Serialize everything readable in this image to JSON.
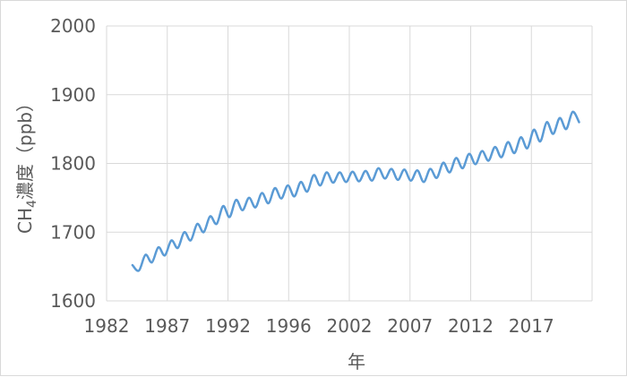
{
  "chart_data": {
    "type": "line",
    "title": "",
    "xlabel": "年",
    "ylabel": {
      "prefix": "CH",
      "subscript": "4",
      "suffix": "濃度（ppb）"
    },
    "xlim": [
      1982,
      2019.5
    ],
    "ylim": [
      1600,
      2000
    ],
    "x_ticks": [
      "1982",
      "1987",
      "1992",
      "1996",
      "2002",
      "2007",
      "2012",
      "2017"
    ],
    "y_ticks": [
      "1600",
      "1700",
      "1800",
      "1900",
      "2000"
    ],
    "grid": true,
    "legend": "none",
    "colors": {
      "line": "#5b9bd5",
      "grid": "#d9d9d9",
      "text": "#595959"
    },
    "series": [
      {
        "x": [
          1984.0,
          1984.5,
          1985.0,
          1985.5,
          1986.0,
          1986.5,
          1987.0,
          1987.5,
          1988.0,
          1988.5,
          1989.0,
          1989.5,
          1990.0,
          1990.5,
          1991.0,
          1991.5,
          1992.0,
          1992.5,
          1993.0,
          1993.5,
          1994.0,
          1994.5,
          1995.0,
          1995.5,
          1996.0,
          1996.5,
          1997.0,
          1997.5,
          1998.0,
          1998.5,
          1999.0,
          1999.5,
          2000.0,
          2000.5,
          2001.0,
          2001.5,
          2002.0,
          2002.5,
          2003.0,
          2003.5,
          2004.0,
          2004.5,
          2005.0,
          2005.5,
          2006.0,
          2006.5,
          2007.0,
          2007.5,
          2008.0,
          2008.5,
          2009.0,
          2009.5,
          2010.0,
          2010.5,
          2011.0,
          2011.5,
          2012.0,
          2012.5,
          2013.0,
          2013.5,
          2014.0,
          2014.5,
          2015.0,
          2015.5,
          2016.0,
          2016.5,
          2017.0,
          2017.5,
          2018.0,
          2018.5
        ],
        "y": [
          1652,
          1644,
          1667,
          1656,
          1678,
          1666,
          1688,
          1677,
          1700,
          1688,
          1712,
          1700,
          1723,
          1712,
          1738,
          1722,
          1747,
          1732,
          1750,
          1736,
          1757,
          1742,
          1764,
          1749,
          1768,
          1752,
          1773,
          1759,
          1783,
          1768,
          1787,
          1772,
          1787,
          1773,
          1788,
          1774,
          1789,
          1775,
          1793,
          1778,
          1792,
          1776,
          1791,
          1775,
          1790,
          1773,
          1792,
          1779,
          1801,
          1787,
          1808,
          1793,
          1814,
          1799,
          1818,
          1804,
          1824,
          1809,
          1831,
          1815,
          1838,
          1822,
          1849,
          1832,
          1860,
          1843,
          1866,
          1850,
          1875,
          1860
        ]
      }
    ]
  }
}
